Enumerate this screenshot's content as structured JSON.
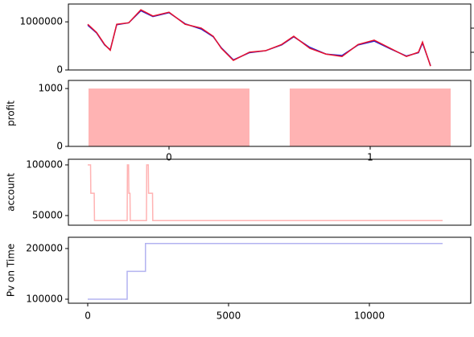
{
  "chart_data": [
    {
      "type": "line",
      "x": [
        0,
        314,
        600,
        800,
        1029,
        1457,
        1886,
        2314,
        2886,
        3457,
        4029,
        4457,
        4743,
        5171,
        5743,
        6314,
        6886,
        7314,
        7886,
        8457,
        9029,
        9600,
        10171,
        10743,
        11314,
        11743,
        11886,
        12171
      ],
      "series": [
        {
          "color": "#1f1fcf",
          "values": [
            930000,
            770000,
            520000,
            420000,
            940000,
            980000,
            1230000,
            1110000,
            1190000,
            960000,
            850000,
            690000,
            460000,
            210000,
            360000,
            400000,
            520000,
            690000,
            470000,
            330000,
            300000,
            520000,
            600000,
            440000,
            290000,
            360000,
            560000,
            90000
          ]
        },
        {
          "color": "#e8112d",
          "values": [
            950000,
            780000,
            530000,
            410000,
            950000,
            980000,
            1250000,
            1120000,
            1200000,
            950000,
            870000,
            700000,
            450000,
            200000,
            370000,
            400000,
            530000,
            700000,
            450000,
            330000,
            280000,
            530000,
            620000,
            450000,
            280000,
            370000,
            580000,
            80000
          ]
        }
      ],
      "xlim": [
        -686,
        13600
      ],
      "ylim": [
        0,
        1370000
      ],
      "yticks": [
        0,
        1000000
      ]
    },
    {
      "type": "bar",
      "categories": [
        "0",
        "1"
      ],
      "values": [
        1000,
        1000
      ],
      "color": "#ffb3b3",
      "ylabel": "profit",
      "ylim": [
        0,
        1140
      ],
      "yticks": [
        0,
        1000
      ]
    },
    {
      "type": "line",
      "ylabel": "account",
      "x": [
        0,
        100,
        110,
        230,
        240,
        1400,
        1410,
        1450,
        1460,
        1500,
        1510,
        2085,
        2095,
        2150,
        2160,
        2300,
        2310,
        12600
      ],
      "series": [
        {
          "color": "#ffb3b3",
          "values": [
            100000,
            100000,
            72000,
            72000,
            45000,
            45000,
            100000,
            100000,
            72000,
            72000,
            45000,
            45000,
            100000,
            100000,
            72000,
            72000,
            45000,
            45000
          ]
        }
      ],
      "xlim": [
        -686,
        13600
      ],
      "ylim": [
        40476,
        105556
      ],
      "yticks": [
        50000,
        100000
      ]
    },
    {
      "type": "line",
      "ylabel": "Pv on Time",
      "x": [
        0,
        1400,
        1400,
        2050,
        2050,
        12600
      ],
      "series": [
        {
          "color": "#b3b3f0",
          "values": [
            100000,
            100000,
            155000,
            155000,
            210000,
            210000
          ]
        }
      ],
      "xlim": [
        -686,
        13600
      ],
      "ylim": [
        92063,
        222222
      ],
      "yticks": [
        100000,
        200000
      ],
      "xticks": [
        0,
        5000,
        10000
      ]
    }
  ]
}
